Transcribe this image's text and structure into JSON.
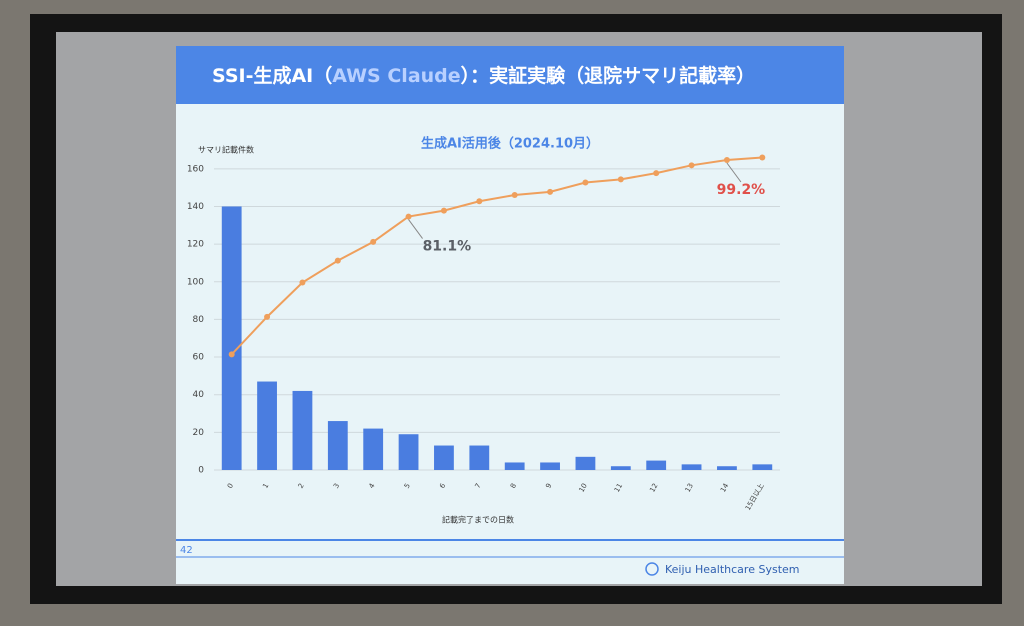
{
  "slide": {
    "header": [
      "SSI-生成AI（",
      "AWS Claude",
      "）：実証実験（退院サマリ記載率）"
    ],
    "page_number": "42",
    "footer": "Keiju Healthcare System"
  },
  "chart_data": {
    "type": "combo",
    "title": "生成AI活用後（2024.10月）",
    "y_label": "サマリ記載件数",
    "x_label": "記載完了までの日数",
    "categories": [
      "0",
      "1",
      "2",
      "3",
      "4",
      "5",
      "6",
      "7",
      "8",
      "9",
      "10",
      "11",
      "12",
      "13",
      "14",
      "15日以上"
    ],
    "ylim": [
      0,
      170
    ],
    "yticks": [
      0,
      20,
      40,
      60,
      80,
      100,
      120,
      140,
      160
    ],
    "y2lim": [
      0,
      102.4
    ],
    "grid": true,
    "series": [
      {
        "type": "bar",
        "color": "#4a7de0",
        "values": [
          140,
          47,
          42,
          26,
          22,
          19,
          13,
          13,
          4,
          4,
          7,
          2,
          5,
          3,
          2,
          3
        ]
      },
      {
        "type": "line",
        "axis": "y2",
        "color": "#ef9f5c",
        "values": [
          37,
          49,
          60,
          67,
          73,
          81.1,
          83,
          86,
          88,
          89,
          92,
          93,
          95,
          97.5,
          99.2,
          100
        ],
        "value_labels": [
          null,
          null,
          null,
          null,
          null,
          "81.1%",
          null,
          null,
          null,
          null,
          null,
          null,
          null,
          null,
          "99.2%",
          null
        ],
        "value_label_colors": [
          null,
          null,
          null,
          null,
          null,
          "#5a5f66",
          null,
          null,
          null,
          null,
          null,
          null,
          null,
          null,
          "#e0504a",
          null
        ]
      }
    ]
  }
}
